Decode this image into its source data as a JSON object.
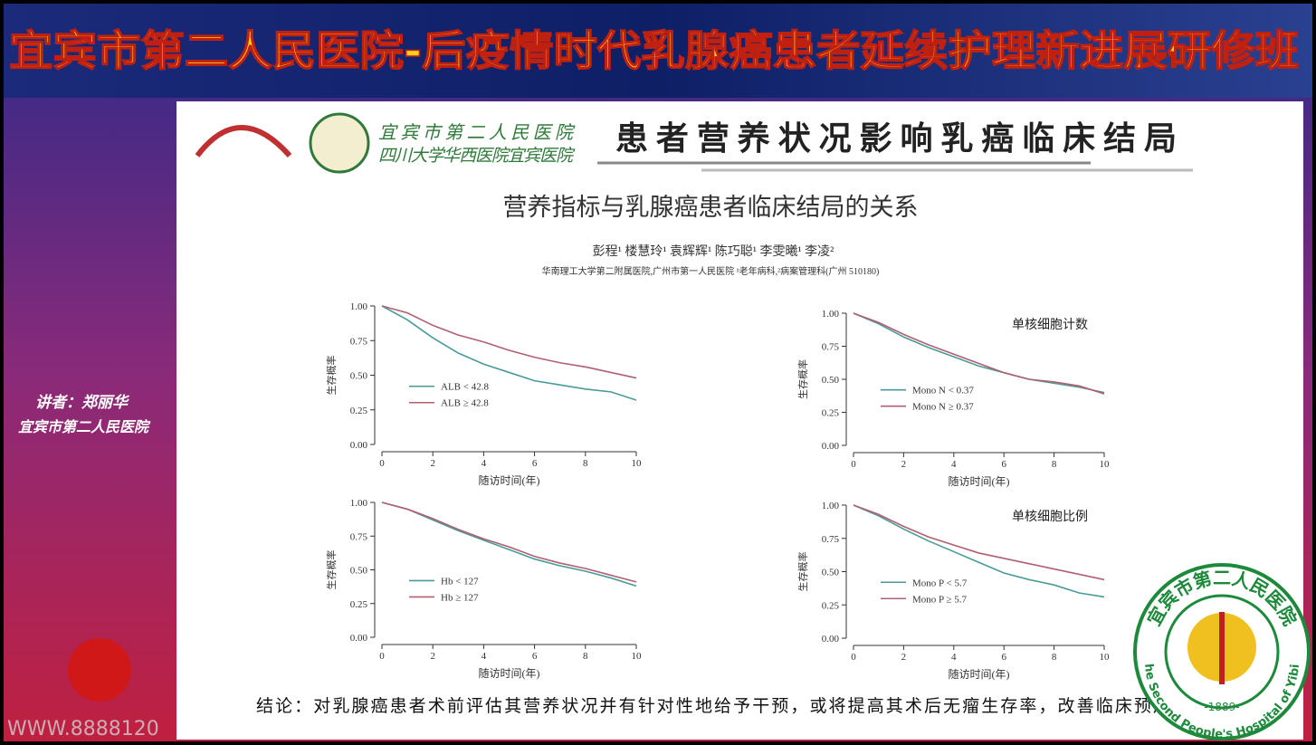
{
  "header": {
    "title": "宜宾市第二人民医院-后疫情时代乳腺癌患者延续护理新进展研修班"
  },
  "speaker": {
    "name": "讲者：郑丽华",
    "org": "宜宾市第二人民医院"
  },
  "watermark": "WWW.8888120",
  "slide": {
    "hospital_name": "宜宾市第二人民医院",
    "hospital_name2": "四川大学华西医院宜宾医院",
    "title": "患者营养状况影响乳癌临床结局",
    "paper_title": "营养指标与乳腺癌患者临床结局的关系",
    "authors": "彭程¹  楼慧玲¹  袁辉辉¹  陈巧聪¹  李雯曦¹  李凌²",
    "affiliation": "华南理工大学第二附属医院,广州市第一人民医院 ¹老年病科,²病案管理科(广州 510180)",
    "conclusion": "结论：对乳腺癌患者术前评估其营养状况并有针对性地给予干预，或将提高其术后无瘤生存率，改善临床预后"
  },
  "seal": {
    "name": "宜宾市第二人民医院",
    "english": "The Second People's Hospital of Yibin",
    "year": "-1889-"
  },
  "chart_data": [
    {
      "type": "line",
      "xlabel": "随访时间(年)",
      "ylabel": "生存概率",
      "x": [
        0,
        1,
        2,
        3,
        4,
        5,
        6,
        7,
        8,
        9,
        10
      ],
      "xlim": [
        0,
        10
      ],
      "xticks": [
        0,
        2,
        4,
        6,
        8,
        10
      ],
      "ylim": [
        0,
        1
      ],
      "yticks": [
        {
          "value": 0,
          "label": "0.00"
        },
        {
          "value": 0.25,
          "label": "0.25"
        },
        {
          "value": 0.5,
          "label": "0.50"
        },
        {
          "value": 0.75,
          "label": "0.75"
        },
        {
          "value": 1,
          "label": "1.00"
        }
      ],
      "series": [
        {
          "name": "ALB < 42.8",
          "color": "#4a9a9a",
          "values": [
            1.0,
            0.9,
            0.77,
            0.66,
            0.58,
            0.52,
            0.46,
            0.43,
            0.4,
            0.38,
            0.32
          ]
        },
        {
          "name": "ALB ≥ 42.8",
          "color": "#b06070",
          "values": [
            1.0,
            0.95,
            0.86,
            0.79,
            0.74,
            0.68,
            0.63,
            0.59,
            0.56,
            0.52,
            0.48
          ]
        }
      ]
    },
    {
      "type": "line",
      "title": "单核细胞计数",
      "xlabel": "随访时间(年)",
      "ylabel": "生存概率",
      "x": [
        0,
        1,
        2,
        3,
        4,
        5,
        6,
        7,
        8,
        9,
        10
      ],
      "xlim": [
        0,
        10
      ],
      "xticks": [
        0,
        2,
        4,
        6,
        8,
        10
      ],
      "ylim": [
        0,
        1
      ],
      "yticks": [
        {
          "value": 0,
          "label": "0.00"
        },
        {
          "value": 0.25,
          "label": "0.25"
        },
        {
          "value": 0.5,
          "label": "0.50"
        },
        {
          "value": 0.75,
          "label": "0.75"
        },
        {
          "value": 1,
          "label": "1.00"
        }
      ],
      "series": [
        {
          "name": "Mono N < 0.37",
          "color": "#4a9a9a",
          "values": [
            1.0,
            0.92,
            0.82,
            0.74,
            0.67,
            0.6,
            0.55,
            0.5,
            0.47,
            0.44,
            0.4
          ]
        },
        {
          "name": "Mono N ≥ 0.37",
          "color": "#b06070",
          "values": [
            1.0,
            0.93,
            0.84,
            0.76,
            0.69,
            0.62,
            0.55,
            0.5,
            0.48,
            0.45,
            0.39
          ]
        }
      ]
    },
    {
      "type": "line",
      "xlabel": "随访时间(年)",
      "ylabel": "生存概率",
      "x": [
        0,
        1,
        2,
        3,
        4,
        5,
        6,
        7,
        8,
        9,
        10
      ],
      "xlim": [
        0,
        10
      ],
      "xticks": [
        0,
        2,
        4,
        6,
        8,
        10
      ],
      "ylim": [
        0,
        1
      ],
      "yticks": [
        {
          "value": 0,
          "label": "0.00"
        },
        {
          "value": 0.25,
          "label": "0.25"
        },
        {
          "value": 0.5,
          "label": "0.50"
        },
        {
          "value": 0.75,
          "label": "0.75"
        },
        {
          "value": 1,
          "label": "1.00"
        }
      ],
      "series": [
        {
          "name": "Hb < 127",
          "color": "#4a9a9a",
          "values": [
            1.0,
            0.95,
            0.87,
            0.79,
            0.72,
            0.65,
            0.58,
            0.53,
            0.49,
            0.44,
            0.38
          ]
        },
        {
          "name": "Hb ≥ 127",
          "color": "#b06070",
          "values": [
            1.0,
            0.95,
            0.88,
            0.8,
            0.73,
            0.67,
            0.6,
            0.55,
            0.51,
            0.46,
            0.41
          ]
        }
      ]
    },
    {
      "type": "line",
      "title": "单核细胞比例",
      "xlabel": "随访时间(年)",
      "ylabel": "生存概率",
      "x": [
        0,
        1,
        2,
        3,
        4,
        5,
        6,
        7,
        8,
        9,
        10
      ],
      "xlim": [
        0,
        10
      ],
      "xticks": [
        0,
        2,
        4,
        6,
        8,
        10
      ],
      "ylim": [
        0,
        1
      ],
      "yticks": [
        {
          "value": 0,
          "label": "0.00"
        },
        {
          "value": 0.25,
          "label": "0.25"
        },
        {
          "value": 0.5,
          "label": "0.50"
        },
        {
          "value": 0.75,
          "label": "0.75"
        },
        {
          "value": 1,
          "label": "1.00"
        }
      ],
      "series": [
        {
          "name": "Mono P < 5.7",
          "color": "#4a9a9a",
          "values": [
            1.0,
            0.92,
            0.82,
            0.73,
            0.65,
            0.57,
            0.49,
            0.44,
            0.4,
            0.34,
            0.31
          ]
        },
        {
          "name": "Mono P ≥ 5.7",
          "color": "#b06070",
          "values": [
            1.0,
            0.93,
            0.84,
            0.76,
            0.7,
            0.64,
            0.6,
            0.56,
            0.52,
            0.48,
            0.44
          ]
        }
      ]
    }
  ]
}
